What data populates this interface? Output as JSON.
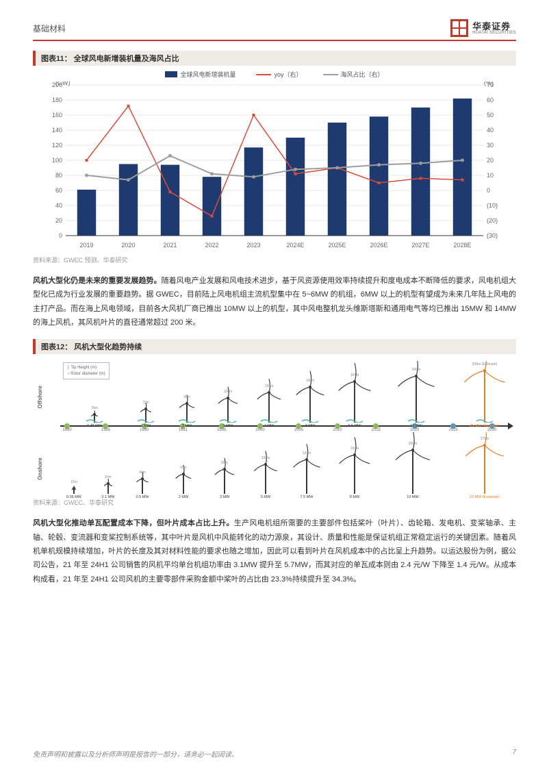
{
  "header": {
    "section": "基础材料",
    "logo_cn": "华泰证券",
    "logo_en": "HUATAI SECURITIES"
  },
  "fig11": {
    "title": "图表11：  全球风电新增装机量及海风占比",
    "y1_label": "(GW)",
    "y2_label": "(%)",
    "legend": {
      "bar": "全球风电新增装机量",
      "line1": "yoy（右）",
      "line2": "海风占比（右）"
    },
    "categories": [
      "2019",
      "2020",
      "2021",
      "2022",
      "2023",
      "2024E",
      "2025E",
      "2026E",
      "2027E",
      "2028E"
    ],
    "bar_values": [
      61,
      95,
      94,
      78,
      117,
      130,
      150,
      158,
      170,
      182
    ],
    "yoy_values": [
      20,
      56,
      -1,
      -17,
      50,
      11,
      15,
      5,
      8,
      7
    ],
    "offshore_values": [
      10,
      7,
      23,
      11,
      9,
      14,
      15,
      17,
      18,
      20
    ],
    "y1_ticks": [
      0,
      20,
      40,
      60,
      80,
      100,
      120,
      140,
      160,
      180,
      200
    ],
    "y2_ticks": [
      -30,
      -20,
      -10,
      0,
      10,
      20,
      30,
      40,
      50,
      60,
      70
    ],
    "bar_color": "#1f3a6e",
    "yoy_color": "#d94b3c",
    "offshore_color": "#9e9e9e",
    "grid_color": "#d0d0d0",
    "bg": "#ffffff",
    "source": "资料来源：GWEC 预测、华泰研究"
  },
  "para1": {
    "lead": "风机大型化仍是未来的重要发展趋势。",
    "body": "随着风电产业发展和风电技术进步，基于风资源使用效率持续提升和度电成本不断降低的要求，风电机组大型化已成为行业发展的重要趋势。据 GWEC，目前陆上风电机组主流机型集中在 5~6MW 的机组，6MW 以上的机型有望成为未来几年陆上风电的主打产品。而在海上风电领域，目前各大风机厂商已推出 10MW 以上的机型，其中风电整机龙头维斯塔斯和通用电气等均已推出 15MW 和 14MW 的海上风机，其风机叶片的直径通常超过 200 米。"
  },
  "fig12": {
    "title": "图表12：  风机大型化趋势持续",
    "legend": {
      "tip": "Tip Height (m)",
      "rotor": "Rotor diameter (m)"
    },
    "row_labels": {
      "top": "Offshore",
      "bottom": "Onshore"
    },
    "years": [
      "1980",
      "1985",
      "1990",
      "1991",
      "1995",
      "2000",
      "2005",
      "2010",
      "2015",
      "2020",
      "2025",
      "2030"
    ],
    "dot_colors": [
      "#8fbc5a",
      "#8fbc5a",
      "#8fbc5a",
      "#8fbc5a",
      "#8fbc5a",
      "#8fbc5a",
      "#8fbc5a",
      "#8fbc5a",
      "#8fbc5a",
      "#5a9bbc",
      "#5a9bbc",
      "#5a9bbc"
    ],
    "offshore": [
      {
        "mw": "0.45 MW",
        "h": "35m",
        "d": "0.5 MW"
      },
      {
        "mw": "2 MW",
        "h": "70m"
      },
      {
        "mw": "3 MW",
        "h": "90m"
      },
      {
        "mw": "5 MW",
        "h": "100m"
      },
      {
        "mw": "7 MW",
        "h": "120m"
      },
      {
        "mw": "8 MW",
        "h": "140m"
      },
      {
        "mw": "9.5 MW",
        "h": "164m"
      },
      {
        "mw": "12 MW",
        "h": "200m"
      },
      {
        "mw": "25 MW (Estimate)",
        "h": "300m (Estimate)"
      }
    ],
    "onshore": [
      {
        "mw": "0.05 MW",
        "h": "15m"
      },
      {
        "mw": "0.1 MW",
        "h": "20m"
      },
      {
        "mw": "0.5 MW",
        "h": "40m"
      },
      {
        "mw": "2 MW",
        "h": "50m"
      },
      {
        "mw": "3 MW",
        "h": "80m"
      },
      {
        "mw": "5 MW",
        "h": "100m"
      },
      {
        "mw": "7.5 MW",
        "h": "130m"
      },
      {
        "mw": "8 MW",
        "h": "150m"
      },
      {
        "mw": "10 MW",
        "h": "200m"
      },
      {
        "mw": "15 MW (Estimate)",
        "h": "275m"
      }
    ],
    "turbine_color": "#3a3a3a",
    "wave_color": "#4db6ac",
    "estimate_color": "#e67e22",
    "source": "资料来源：GWEC、华泰研究"
  },
  "para2": {
    "lead": "风机大型化推动单瓦配置成本下降，但叶片成本占比上升。",
    "body": "生产风电机组所需要的主要部件包括桨叶（叶片）、齿轮箱、发电机、变桨轴承、主轴、轮毂、变流器和变桨控制系统等，其中叶片是风机中风能转化的动力源泉，其设计、质量和性能是保证机组正常稳定运行的关键因素。随着风机单机规模持续增加，叶片的长度及其对材料性能的要求也随之增加，因此可以看到叶片在风机成本中的占比呈上升趋势。以运达股份为例，据公司公告，21 年至 24H1 公司销售的风机平均单台机组功率由 3.1MW 提升至 5.7MW，而其对应的单瓦成本则由 2.4 元/W 下降至 1.4 元/W。从成本构成看，21 年至 24H1 公司风机的主要零部件采购金额中桨叶的占比由 23.3%持续提升至 34.3%。"
  },
  "footer": {
    "disclaimer": "免责声明和披露以及分析师声明是报告的一部分，请务必一起阅读。",
    "page": "7"
  }
}
